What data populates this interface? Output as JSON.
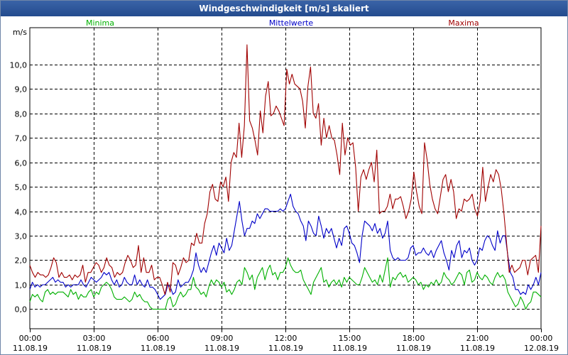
{
  "window": {
    "title": "Windgeschwindigkeit [m/s] skaliert"
  },
  "colors": {
    "min": "#00b000",
    "avg": "#0000c8",
    "max": "#a00000",
    "grid": "#000000",
    "background": "#ffffff"
  },
  "chart_data": {
    "type": "line",
    "title": "Windgeschwindigkeit [m/s] skaliert",
    "ylabel": "m/s",
    "ylim": [
      -0.8,
      11.5
    ],
    "yticks": [
      0,
      1,
      2,
      3,
      4,
      5,
      6,
      7,
      8,
      9,
      10
    ],
    "ytick_labels": [
      "0,0",
      "1,0",
      "2,0",
      "3,0",
      "4,0",
      "5,0",
      "6,0",
      "7,0",
      "8,0",
      "9,0",
      "10,0"
    ],
    "xlim": [
      0,
      24
    ],
    "xticks": [
      0,
      3,
      6,
      9,
      12,
      15,
      18,
      21,
      24
    ],
    "xtick_labels": [
      {
        "time": "00:00",
        "date": "11.08.19"
      },
      {
        "time": "03:00",
        "date": "11.08.19"
      },
      {
        "time": "06:00",
        "date": "11.08.19"
      },
      {
        "time": "09:00",
        "date": "11.08.19"
      },
      {
        "time": "12:00",
        "date": "11.08.19"
      },
      {
        "time": "15:00",
        "date": "11.08.19"
      },
      {
        "time": "18:00",
        "date": "11.08.19"
      },
      {
        "time": "21:00",
        "date": "11.08.19"
      },
      {
        "time": "00:00",
        "date": "12.08.19"
      }
    ],
    "x_step_hours": 0.1667,
    "series": [
      {
        "key": "min",
        "name": "Minima",
        "color": "#00b000",
        "values": [
          0.3,
          0.6,
          0.5,
          0.6,
          0.4,
          0.3,
          0.7,
          0.8,
          0.6,
          0.7,
          0.6,
          0.7,
          0.7,
          0.7,
          0.6,
          0.5,
          0.8,
          0.6,
          0.7,
          0.4,
          0.6,
          0.5,
          0.5,
          0.7,
          0.8,
          0.5,
          0.7,
          0.6,
          0.9,
          1.0,
          1.1,
          1.0,
          0.8,
          0.5,
          0.4,
          0.4,
          0.4,
          0.5,
          0.4,
          0.3,
          0.4,
          0.7,
          0.5,
          0.6,
          0.4,
          0.3,
          0.3,
          0.1,
          0.0,
          0.0,
          0.0,
          0.0,
          0.0,
          0.0,
          0.4,
          0.5,
          0.1,
          0.2,
          0.5,
          0.7,
          0.5,
          0.6,
          0.8,
          0.8,
          1.3,
          0.9,
          0.8,
          0.6,
          0.7,
          0.5,
          0.9,
          1.2,
          1.0,
          1.2,
          1.1,
          0.9,
          1.1,
          0.7,
          0.8,
          0.6,
          0.8,
          1.1,
          1.2,
          1.0,
          1.7,
          1.5,
          1.2,
          1.4,
          0.8,
          1.3,
          1.5,
          1.7,
          1.2,
          1.6,
          1.8,
          1.4,
          1.5,
          1.2,
          1.5,
          1.5,
          1.7,
          2.1,
          1.8,
          1.6,
          1.5,
          1.5,
          1.6,
          1.2,
          1.0,
          0.8,
          0.6,
          1.1,
          1.3,
          1.5,
          1.7,
          1.1,
          1.2,
          0.9,
          1.1,
          1.2,
          1.0,
          1.2,
          0.9,
          1.3,
          1.1,
          1.3,
          1.2,
          1.1,
          1.0,
          1.0,
          1.3,
          1.7,
          1.5,
          1.3,
          1.1,
          1.2,
          1.0,
          1.4,
          1.1,
          1.6,
          2.1,
          0.9,
          1.3,
          1.2,
          1.4,
          1.5,
          1.3,
          1.4,
          1.1,
          1.2,
          1.3,
          1.2,
          1.0,
          1.1,
          0.8,
          1.0,
          0.9,
          1.1,
          1.0,
          1.2,
          1.0,
          1.1,
          1.5,
          1.3,
          1.2,
          1.0,
          1.1,
          1.3,
          1.5,
          1.4,
          1.0,
          1.5,
          1.6,
          1.1,
          1.2,
          1.5,
          1.3,
          1.2,
          1.4,
          1.3,
          1.1,
          1.0,
          1.3,
          1.5,
          1.3,
          1.4,
          1.2,
          0.7,
          0.5,
          0.3,
          0.1,
          0.2,
          0.5,
          0.3,
          0.0,
          0.2,
          0.3,
          0.7,
          0.7,
          0.6,
          0.5
        ]
      },
      {
        "key": "avg",
        "name": "Mittelwerte",
        "color": "#0000c8",
        "values": [
          0.8,
          1.1,
          0.9,
          1.0,
          0.9,
          1.0,
          1.0,
          1.1,
          1.2,
          1.3,
          1.1,
          1.2,
          1.1,
          1.1,
          0.9,
          1.0,
          0.9,
          1.0,
          1.0,
          1.0,
          1.2,
          1.0,
          0.9,
          1.1,
          1.3,
          1.2,
          1.1,
          1.2,
          1.3,
          1.5,
          1.4,
          1.5,
          1.2,
          1.0,
          1.2,
          0.9,
          1.0,
          1.3,
          1.1,
          1.0,
          1.0,
          1.4,
          1.0,
          1.2,
          1.0,
          0.9,
          1.2,
          0.9,
          0.9,
          0.8,
          0.6,
          0.4,
          0.5,
          0.6,
          1.0,
          0.9,
          0.6,
          0.7,
          1.2,
          0.9,
          1.0,
          1.1,
          1.1,
          1.3,
          1.6,
          2.3,
          1.8,
          1.5,
          1.7,
          1.5,
          1.9,
          2.3,
          2.6,
          2.2,
          2.7,
          2.5,
          2.3,
          2.9,
          2.4,
          2.6,
          3.2,
          3.8,
          4.4,
          3.6,
          3.0,
          3.3,
          3.3,
          3.6,
          3.5,
          3.9,
          3.7,
          3.9,
          4.1,
          4.1,
          4.0,
          4.0,
          4.0,
          4.0,
          4.1,
          4.0,
          4.1,
          4.4,
          4.7,
          4.2,
          4.0,
          3.9,
          3.6,
          3.4,
          2.8,
          3.6,
          3.4,
          3.1,
          3.0,
          3.8,
          3.4,
          2.9,
          3.3,
          3.1,
          3.3,
          2.9,
          2.5,
          2.9,
          2.6,
          3.3,
          3.4,
          3.1,
          2.7,
          2.6,
          2.3,
          1.9,
          3.0,
          3.6,
          3.5,
          3.4,
          3.2,
          3.5,
          3.1,
          3.3,
          2.9,
          3.1,
          3.6,
          2.4,
          2.1,
          2.0,
          2.1,
          2.0,
          2.0,
          2.0,
          2.1,
          2.5,
          2.6,
          2.2,
          2.3,
          2.3,
          2.5,
          2.3,
          2.2,
          2.4,
          2.1,
          2.4,
          2.6,
          2.8,
          2.3,
          2.0,
          1.6,
          2.4,
          2.1,
          2.6,
          2.8,
          2.1,
          2.4,
          2.3,
          2.5,
          2.0,
          1.8,
          2.0,
          2.5,
          2.4,
          2.8,
          3.0,
          2.9,
          2.6,
          2.4,
          3.2,
          2.7,
          3.0,
          3.0,
          2.2,
          1.5,
          1.3,
          0.8,
          0.8,
          0.6,
          0.7,
          0.6,
          1.0,
          0.8,
          1.0,
          1.3,
          1.0,
          1.5
        ]
      },
      {
        "key": "max",
        "name": "Maxima",
        "color": "#a00000",
        "values": [
          1.8,
          1.5,
          1.3,
          1.5,
          1.4,
          1.4,
          1.3,
          1.4,
          1.7,
          2.1,
          1.9,
          1.3,
          1.5,
          1.3,
          1.3,
          1.4,
          1.2,
          1.4,
          1.3,
          1.4,
          1.8,
          1.1,
          1.5,
          1.5,
          1.7,
          1.9,
          1.8,
          1.5,
          1.7,
          2.1,
          1.8,
          1.7,
          1.3,
          1.5,
          1.4,
          1.5,
          1.9,
          2.2,
          2.0,
          1.7,
          1.8,
          2.6,
          1.5,
          2.1,
          1.5,
          1.5,
          1.8,
          1.2,
          1.3,
          1.3,
          1.0,
          0.6,
          1.1,
          0.7,
          1.9,
          1.8,
          1.4,
          1.7,
          2.1,
          1.9,
          2.0,
          2.7,
          2.6,
          3.1,
          2.7,
          2.7,
          3.5,
          3.9,
          4.8,
          5.1,
          4.5,
          4.4,
          5.2,
          5.0,
          5.4,
          4.4,
          6.0,
          6.4,
          6.2,
          7.6,
          6.2,
          7.5,
          10.8,
          7.7,
          7.4,
          6.9,
          6.3,
          8.1,
          7.2,
          8.7,
          9.3,
          7.9,
          8.0,
          8.3,
          8.1,
          7.8,
          7.5,
          9.8,
          9.2,
          9.6,
          9.2,
          9.1,
          9.0,
          8.5,
          7.4,
          9.1,
          9.9,
          8.0,
          7.8,
          8.4,
          6.7,
          7.8,
          7.0,
          7.5,
          7.0,
          6.9,
          6.3,
          5.5,
          7.6,
          6.3,
          7.0,
          6.7,
          6.8,
          5.8,
          4.0,
          5.4,
          5.7,
          5.3,
          5.7,
          6.0,
          5.2,
          6.5,
          3.9,
          4.0,
          4.0,
          4.2,
          4.7,
          4.1,
          4.5,
          4.5,
          4.6,
          4.2,
          3.7,
          4.0,
          4.5,
          5.6,
          4.8,
          4.2,
          3.9,
          6.8,
          6.1,
          5.1,
          4.5,
          4.1,
          3.9,
          4.6,
          5.3,
          5.5,
          4.8,
          5.3,
          4.8,
          3.7,
          4.1,
          4.0,
          4.5,
          4.4,
          4.5,
          4.7,
          4.1,
          3.8,
          4.4,
          5.8,
          4.4,
          5.0,
          5.5,
          5.2,
          5.7,
          5.5,
          4.9,
          3.9,
          2.7,
          1.5,
          1.8,
          1.5,
          1.6,
          1.7,
          2.0,
          2.0,
          1.4,
          2.0,
          2.1,
          2.2,
          1.5,
          3.4
        ]
      }
    ]
  }
}
